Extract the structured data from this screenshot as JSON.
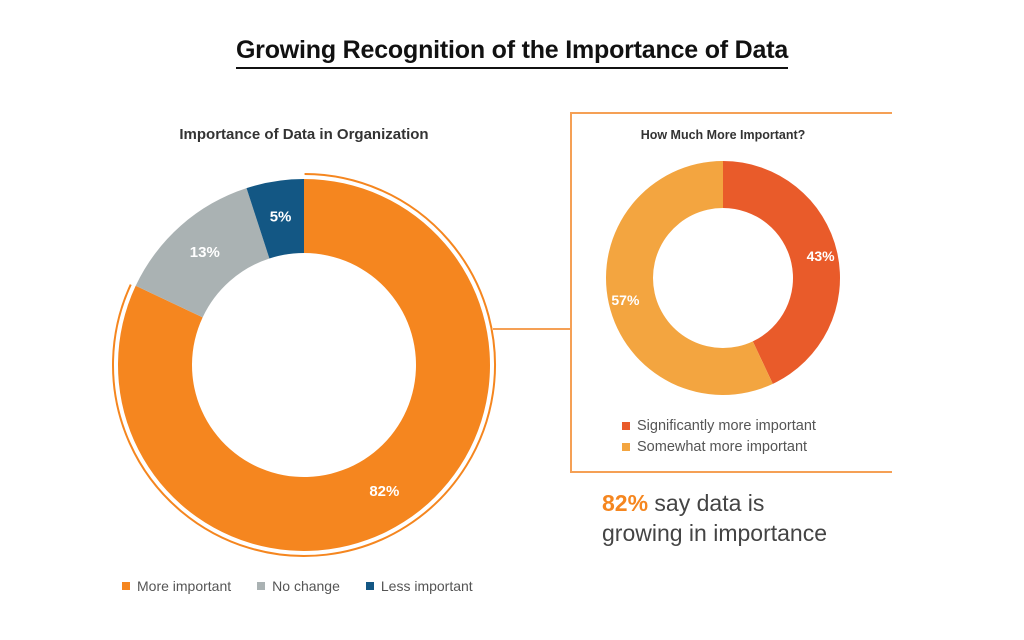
{
  "title": "Growing Recognition of the Importance of Data",
  "colors": {
    "accent": "#f5861f",
    "more_important": "#f5861f",
    "no_change": "#aab2b3",
    "less_important": "#135784",
    "significantly": "#e95b2a",
    "somewhat": "#f3a540",
    "box_border": "#f5a055"
  },
  "chart_data": [
    {
      "type": "pie",
      "variant": "donut",
      "title": "Importance of Data in Organization",
      "categories": [
        "More important",
        "No change",
        "Less important"
      ],
      "values": [
        82,
        13,
        5
      ],
      "labels": [
        "82%",
        "13%",
        "5%"
      ],
      "legend_position": "bottom"
    },
    {
      "type": "pie",
      "variant": "donut",
      "title": "How Much More Important?",
      "categories": [
        "Significantly more important",
        "Somewhat more important"
      ],
      "values": [
        43,
        57
      ],
      "labels": [
        "43%",
        "57%"
      ],
      "legend_position": "bottom"
    }
  ],
  "callout": {
    "highlight": "82%",
    "line1": " say data is",
    "line2": "growing in importance"
  }
}
